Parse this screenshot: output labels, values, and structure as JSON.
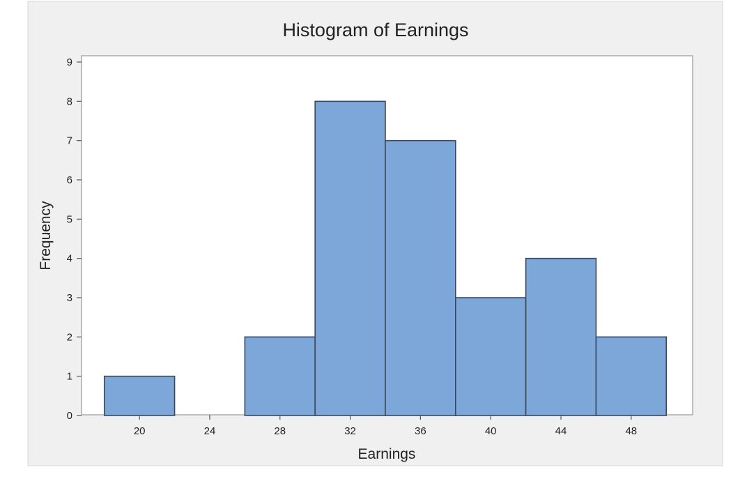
{
  "chart_data": {
    "type": "bar",
    "title": "Histogram of Earnings",
    "xlabel": "Earnings",
    "ylabel": "Frequency",
    "bin_width": 4,
    "bins": [
      {
        "center": 20,
        "count": 1
      },
      {
        "center": 24,
        "count": 0
      },
      {
        "center": 28,
        "count": 2
      },
      {
        "center": 32,
        "count": 8
      },
      {
        "center": 36,
        "count": 7
      },
      {
        "center": 40,
        "count": 3
      },
      {
        "center": 44,
        "count": 4
      },
      {
        "center": 48,
        "count": 2
      }
    ],
    "xticks": [
      20,
      24,
      28,
      32,
      36,
      40,
      44,
      48
    ],
    "yticks": [
      0,
      1,
      2,
      3,
      4,
      5,
      6,
      7,
      8,
      9
    ],
    "ylim": [
      0,
      9
    ],
    "xlim": [
      16.7,
      51.5
    ],
    "grid": false,
    "colors": {
      "bar_fill": "#7da6d9",
      "bar_stroke": "#3a4a5c",
      "panel_border": "#9a9a9a",
      "background": "#f0f0f0",
      "plot_background": "#ffffff"
    }
  }
}
